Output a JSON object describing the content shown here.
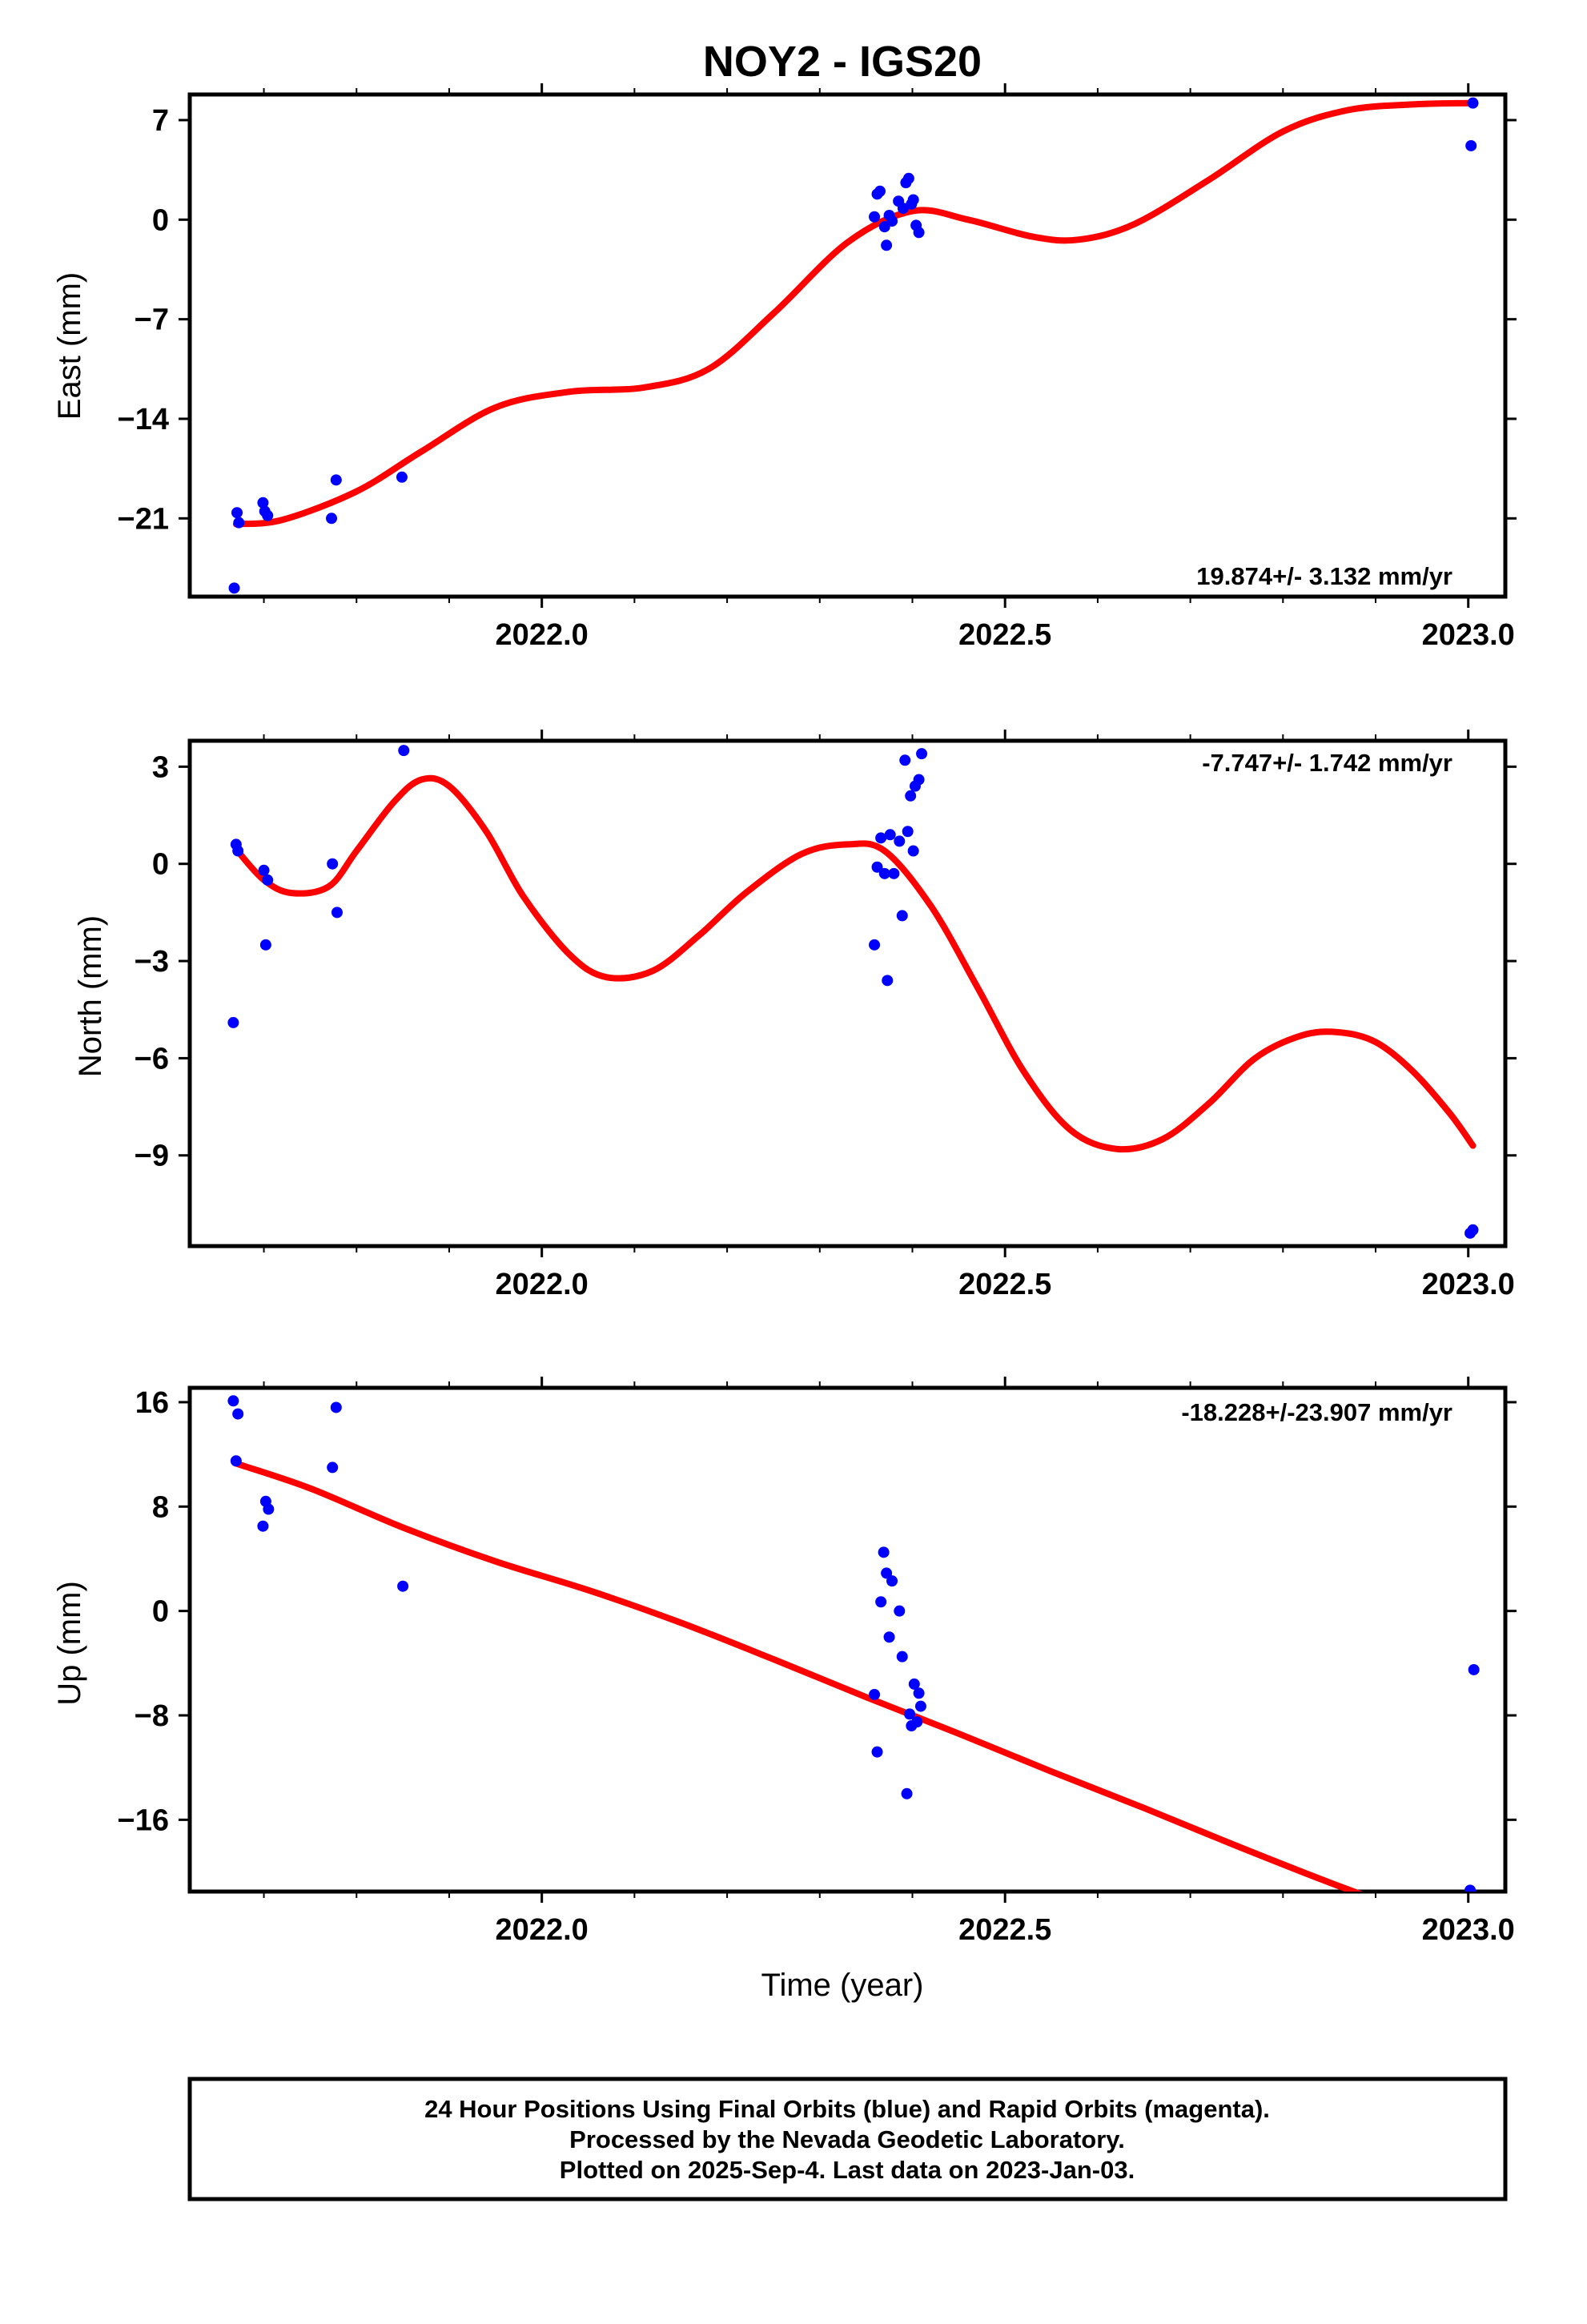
{
  "title": "NOY2 - IGS20",
  "colors": {
    "fit": "#ff0000",
    "points": "#0000ff",
    "frame": "#000000"
  },
  "footer": {
    "line1": "24 Hour Positions Using Final Orbits (blue) and Rapid Orbits (magenta).",
    "line2": "Processed by the Nevada Geodetic Laboratory.",
    "line3": "Plotted on 2025-Sep-4. Last data on 2023-Jan-03."
  },
  "chart_data": [
    {
      "type": "scatter",
      "ylabel": "East (mm)",
      "xlabel": "",
      "rate": "19.874+/- 3.132 mm/yr",
      "xlim": [
        2021.62,
        2023.04
      ],
      "ylim": [
        -26.5,
        8.8
      ],
      "xticks": [
        2022.0,
        2022.5,
        2023.0
      ],
      "xtick_labels": [
        "2022.0",
        "2022.5",
        "2023.0"
      ],
      "xminor": [
        2021.7,
        2021.8,
        2021.9,
        2022.1,
        2022.2,
        2022.3,
        2022.4,
        2022.6,
        2022.7,
        2022.8,
        2022.9
      ],
      "yticks": [
        7,
        0,
        -7,
        -14,
        -21
      ],
      "ytick_labels": [
        "7",
        "0",
        "−7",
        "−14",
        "−21"
      ],
      "points": [
        [
          2021.668,
          -25.9
        ],
        [
          2021.671,
          -20.6
        ],
        [
          2021.673,
          -21.3
        ],
        [
          2021.699,
          -19.9
        ],
        [
          2021.701,
          -20.5
        ],
        [
          2021.704,
          -20.8
        ],
        [
          2021.773,
          -21.0
        ],
        [
          2021.778,
          -18.3
        ],
        [
          2021.849,
          -18.1
        ],
        [
          2022.359,
          0.2
        ],
        [
          2022.362,
          1.8
        ],
        [
          2022.365,
          2.0
        ],
        [
          2022.37,
          -0.5
        ],
        [
          2022.372,
          -1.8
        ],
        [
          2022.375,
          0.3
        ],
        [
          2022.378,
          -0.1
        ],
        [
          2022.385,
          1.3
        ],
        [
          2022.39,
          0.8
        ],
        [
          2022.393,
          2.6
        ],
        [
          2022.396,
          2.9
        ],
        [
          2022.399,
          1.1
        ],
        [
          2022.401,
          1.4
        ],
        [
          2022.404,
          -0.4
        ],
        [
          2022.407,
          -0.9
        ],
        [
          2023.003,
          5.2
        ],
        [
          2023.005,
          8.2
        ]
      ],
      "fit": [
        [
          2021.67,
          -21.4
        ],
        [
          2021.72,
          -21.1
        ],
        [
          2021.8,
          -19.1
        ],
        [
          2021.87,
          -16.3
        ],
        [
          2021.95,
          -13.2
        ],
        [
          2022.03,
          -12.1
        ],
        [
          2022.11,
          -11.8
        ],
        [
          2022.18,
          -10.5
        ],
        [
          2022.25,
          -6.6
        ],
        [
          2022.33,
          -1.6
        ],
        [
          2022.4,
          0.6
        ],
        [
          2022.46,
          0.0
        ],
        [
          2022.53,
          -1.2
        ],
        [
          2022.58,
          -1.4
        ],
        [
          2022.64,
          -0.3
        ],
        [
          2022.72,
          2.8
        ],
        [
          2022.8,
          6.2
        ],
        [
          2022.87,
          7.7
        ],
        [
          2022.94,
          8.1
        ],
        [
          2023.0,
          8.2
        ]
      ]
    },
    {
      "type": "scatter",
      "ylabel": "North (mm)",
      "xlabel": "",
      "rate": "-7.747+/- 1.742 mm/yr",
      "xlim": [
        2021.62,
        2023.04
      ],
      "ylim": [
        -11.8,
        3.8
      ],
      "xticks": [
        2022.0,
        2022.5,
        2023.0
      ],
      "xtick_labels": [
        "2022.0",
        "2022.5",
        "2023.0"
      ],
      "xminor": [
        2021.7,
        2021.8,
        2021.9,
        2022.1,
        2022.2,
        2022.3,
        2022.4,
        2022.6,
        2022.7,
        2022.8,
        2022.9
      ],
      "yticks": [
        3,
        0,
        -3,
        -6,
        -9
      ],
      "ytick_labels": [
        "3",
        "0",
        "−3",
        "−6",
        "−9"
      ],
      "points": [
        [
          2021.667,
          -4.9
        ],
        [
          2021.67,
          0.6
        ],
        [
          2021.672,
          0.4
        ],
        [
          2021.7,
          -0.2
        ],
        [
          2021.702,
          -2.5
        ],
        [
          2021.704,
          -0.5
        ],
        [
          2021.774,
          0.0
        ],
        [
          2021.779,
          -1.5
        ],
        [
          2021.851,
          3.5
        ],
        [
          2022.359,
          -2.5
        ],
        [
          2022.362,
          -0.1
        ],
        [
          2022.366,
          0.8
        ],
        [
          2022.37,
          -0.3
        ],
        [
          2022.373,
          -3.6
        ],
        [
          2022.376,
          0.9
        ],
        [
          2022.38,
          -0.3
        ],
        [
          2022.386,
          0.7
        ],
        [
          2022.389,
          -1.6
        ],
        [
          2022.392,
          3.2
        ],
        [
          2022.395,
          1.0
        ],
        [
          2022.398,
          2.1
        ],
        [
          2022.401,
          0.4
        ],
        [
          2022.403,
          2.4
        ],
        [
          2022.407,
          2.6
        ],
        [
          2022.41,
          3.4
        ],
        [
          2023.002,
          -11.4
        ],
        [
          2023.005,
          -11.3
        ]
      ],
      "fit": [
        [
          2021.67,
          0.45
        ],
        [
          2021.7,
          -0.5
        ],
        [
          2021.73,
          -0.9
        ],
        [
          2021.77,
          -0.7
        ],
        [
          2021.8,
          0.4
        ],
        [
          2021.84,
          1.9
        ],
        [
          2021.87,
          2.6
        ],
        [
          2021.9,
          2.4
        ],
        [
          2021.94,
          1.0
        ],
        [
          2021.98,
          -1.0
        ],
        [
          2022.03,
          -2.8
        ],
        [
          2022.07,
          -3.5
        ],
        [
          2022.12,
          -3.3
        ],
        [
          2022.17,
          -2.2
        ],
        [
          2022.22,
          -0.9
        ],
        [
          2022.28,
          0.3
        ],
        [
          2022.33,
          0.6
        ],
        [
          2022.37,
          0.4
        ],
        [
          2022.42,
          -1.3
        ],
        [
          2022.47,
          -3.8
        ],
        [
          2022.52,
          -6.4
        ],
        [
          2022.57,
          -8.2
        ],
        [
          2022.62,
          -8.8
        ],
        [
          2022.67,
          -8.5
        ],
        [
          2022.72,
          -7.4
        ],
        [
          2022.77,
          -6.0
        ],
        [
          2022.82,
          -5.3
        ],
        [
          2022.86,
          -5.2
        ],
        [
          2022.9,
          -5.5
        ],
        [
          2022.94,
          -6.4
        ],
        [
          2022.98,
          -7.7
        ],
        [
          2023.005,
          -8.7
        ]
      ]
    },
    {
      "type": "scatter",
      "ylabel": "Up (mm)",
      "xlabel": "Time (year)",
      "rate": "-18.228+/-23.907 mm/yr",
      "xlim": [
        2021.62,
        2023.04
      ],
      "ylim": [
        -21.5,
        17.1
      ],
      "xticks": [
        2022.0,
        2022.5,
        2023.0
      ],
      "xtick_labels": [
        "2022.0",
        "2022.5",
        "2023.0"
      ],
      "xminor": [
        2021.7,
        2021.8,
        2021.9,
        2022.1,
        2022.2,
        2022.3,
        2022.4,
        2022.6,
        2022.7,
        2022.8,
        2022.9
      ],
      "yticks": [
        16,
        8,
        0,
        -8,
        -16
      ],
      "ytick_labels": [
        "16",
        "8",
        "0",
        "−8",
        "−16"
      ],
      "points": [
        [
          2021.667,
          16.1
        ],
        [
          2021.67,
          11.5
        ],
        [
          2021.672,
          15.1
        ],
        [
          2021.699,
          6.5
        ],
        [
          2021.702,
          8.4
        ],
        [
          2021.705,
          7.8
        ],
        [
          2021.774,
          11.0
        ],
        [
          2021.778,
          15.6
        ],
        [
          2021.85,
          1.9
        ],
        [
          2022.359,
          -6.4
        ],
        [
          2022.362,
          -10.8
        ],
        [
          2022.366,
          0.7
        ],
        [
          2022.369,
          4.5
        ],
        [
          2022.372,
          2.9
        ],
        [
          2022.375,
          -2.0
        ],
        [
          2022.378,
          2.3
        ],
        [
          2022.386,
          0.0
        ],
        [
          2022.389,
          -3.5
        ],
        [
          2022.394,
          -14.0
        ],
        [
          2022.397,
          -7.9
        ],
        [
          2022.399,
          -8.8
        ],
        [
          2022.402,
          -5.6
        ],
        [
          2022.405,
          -8.5
        ],
        [
          2022.407,
          -6.3
        ],
        [
          2022.409,
          -7.3
        ],
        [
          2023.002,
          -21.4
        ],
        [
          2023.006,
          -4.5
        ]
      ],
      "fit": [
        [
          2021.67,
          11.3
        ],
        [
          2021.75,
          9.4
        ],
        [
          2021.85,
          6.4
        ],
        [
          2021.95,
          3.8
        ],
        [
          2022.05,
          1.6
        ],
        [
          2022.15,
          -0.9
        ],
        [
          2022.25,
          -3.7
        ],
        [
          2022.35,
          -6.6
        ],
        [
          2022.45,
          -9.4
        ],
        [
          2022.55,
          -12.3
        ],
        [
          2022.65,
          -15.1
        ],
        [
          2022.75,
          -18.0
        ],
        [
          2022.85,
          -20.8
        ],
        [
          2022.95,
          -23.4
        ],
        [
          2023.005,
          -24.8
        ]
      ]
    }
  ]
}
